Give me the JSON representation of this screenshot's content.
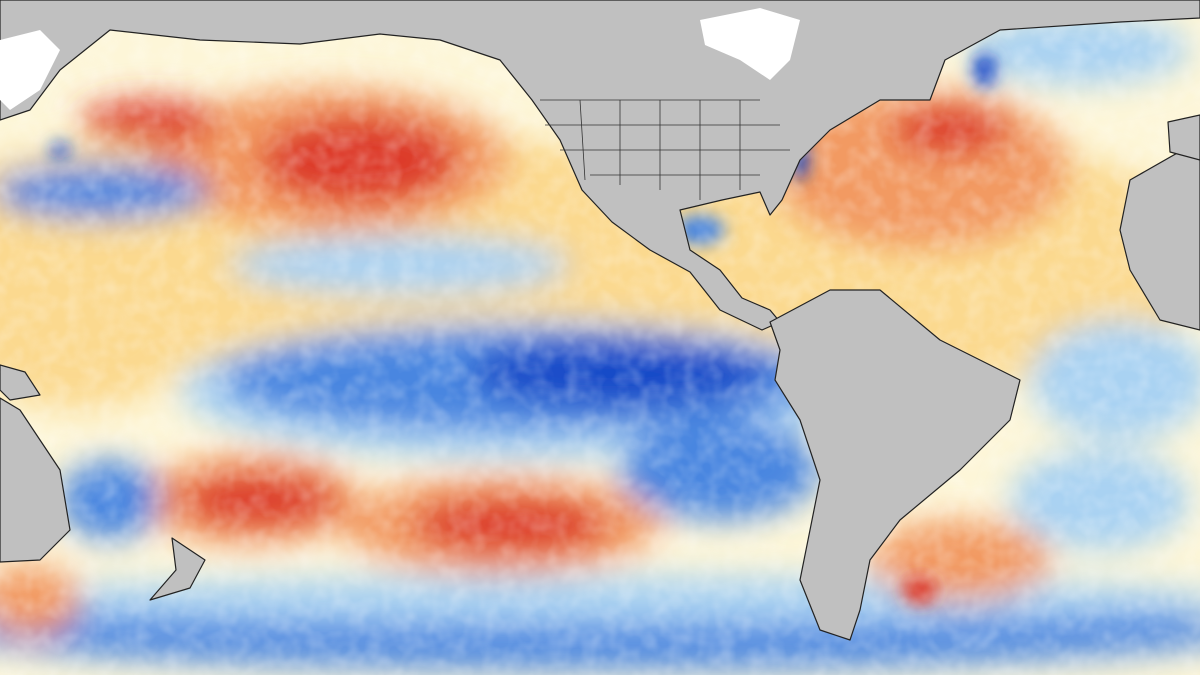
{
  "map": {
    "type": "sea-surface-temperature-anomaly",
    "colors": {
      "land": "#c0c0c0",
      "land_border": "#222222",
      "ice": "#ffffff",
      "neutral": "#fdf6d8",
      "warm_light": "#fbd98f",
      "warm": "#f29a62",
      "warm_strong": "#dd3a2c",
      "cool_light": "#a9d2f2",
      "cool": "#4a86e0",
      "cool_strong": "#1448c8"
    }
  }
}
